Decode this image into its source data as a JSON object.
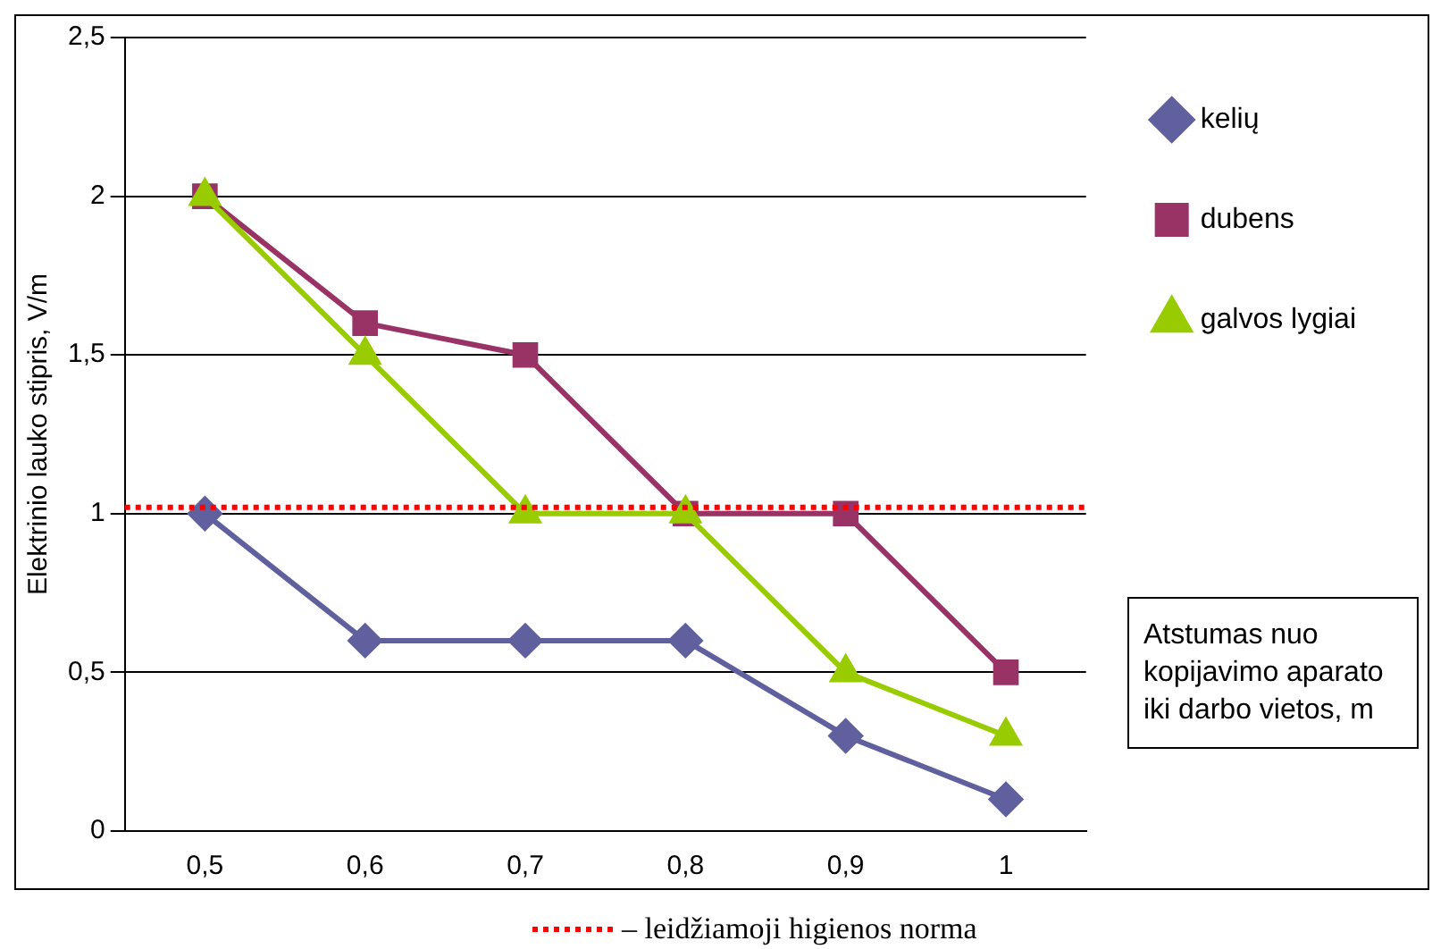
{
  "chart_data": {
    "type": "line",
    "xlabel": "Atstumas nuo kopijavimo aparato iki darbo vietos, m",
    "ylabel": "Elektrinio lauko stipris, V/m",
    "categories": [
      "0,5",
      "0,6",
      "0,7",
      "0,8",
      "0,9",
      "1"
    ],
    "series": [
      {
        "name": "kelių",
        "color": "#60609f",
        "marker": "diamond",
        "values": [
          1,
          0.6,
          0.6,
          0.6,
          0.3,
          0.1
        ]
      },
      {
        "name": "dubens",
        "color": "#993366",
        "marker": "square",
        "values": [
          2,
          1.6,
          1.5,
          1,
          1,
          0.5
        ]
      },
      {
        "name": "galvos lygiai",
        "color": "#99cc00",
        "marker": "triangle",
        "values": [
          2,
          1.5,
          1,
          1,
          0.5,
          0.3
        ]
      }
    ],
    "ylim": [
      0,
      2.5
    ],
    "yticks": [
      0,
      {
        "value": 0.5,
        "label": "0,5"
      },
      1,
      {
        "value": 1.5,
        "label": "1,5"
      },
      2,
      {
        "value": 2.5,
        "label": "2,5"
      }
    ],
    "grid": "y",
    "legend": "right",
    "ref_lines": [
      {
        "axis": "y",
        "value": 1.02,
        "label": "– leidžiamoji higienos norma",
        "color": "#ff0000",
        "line_style": "dotted"
      }
    ]
  }
}
